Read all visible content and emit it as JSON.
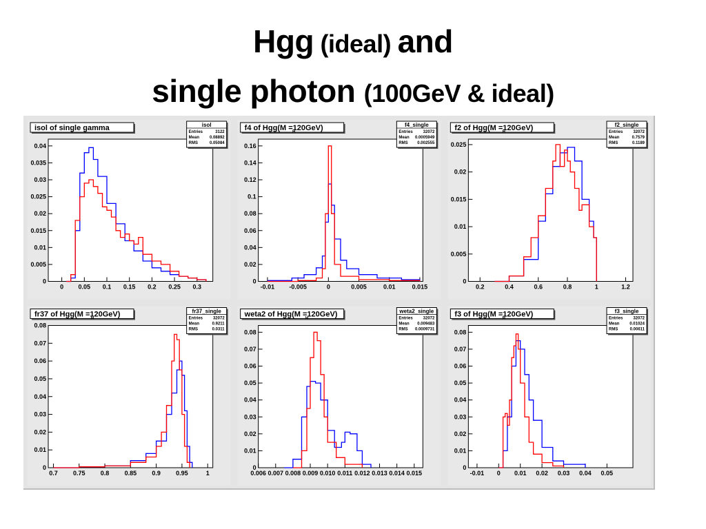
{
  "slide": {
    "title_line1_a": "Hgg",
    "title_line1_b": " (ideal) ",
    "title_line1_c": "and",
    "title_line2_a": "single photon ",
    "title_line2_b": "(100GeV & ideal)"
  },
  "colors": {
    "hgg": "#ff0000",
    "single": "#0000ff",
    "pad": "#ffffff",
    "canvas": "#e4e4e4"
  },
  "chart_data": [
    {
      "type": "line",
      "title": "isol of single gamma",
      "stats": {
        "name": "isol",
        "rows": [
          [
            "Entries",
            "3122"
          ],
          [
            "Mean",
            "0.08892"
          ],
          [
            "RMS",
            "0.05084"
          ]
        ]
      },
      "xlim": [
        -0.03,
        0.335
      ],
      "ylim": [
        0,
        0.042
      ],
      "xticks": [
        0,
        0.05,
        0.1,
        0.15,
        0.2,
        0.25,
        0.3
      ],
      "xtick_labels": [
        "0",
        "0.05",
        "0.1",
        "0.15",
        "0.2",
        "0.25",
        "0.3"
      ],
      "yticks": [
        0,
        0.005,
        0.01,
        0.015,
        0.02,
        0.025,
        0.03,
        0.035,
        0.04
      ],
      "ytick_labels": [
        "0",
        "0.005",
        "0.01",
        "0.015",
        "0.02",
        "0.025",
        "0.03",
        "0.035",
        "0.04"
      ],
      "series": [
        {
          "color": "#0000ff",
          "x": [
            0.01,
            0.02,
            0.03,
            0.04,
            0.05,
            0.06,
            0.07,
            0.08,
            0.1,
            0.12,
            0.14,
            0.16,
            0.18,
            0.2,
            0.22,
            0.24,
            0.26,
            0.28,
            0.3,
            0.32
          ],
          "y": [
            0,
            0.001,
            0.015,
            0.032,
            0.038,
            0.0395,
            0.036,
            0.031,
            0.023,
            0.017,
            0.012,
            0.009,
            0.006,
            0.004,
            0.003,
            0.002,
            0.0015,
            0.001,
            0.0005,
            0
          ]
        },
        {
          "color": "#ff0000",
          "x": [
            0.01,
            0.02,
            0.03,
            0.04,
            0.05,
            0.06,
            0.07,
            0.08,
            0.09,
            0.1,
            0.11,
            0.12,
            0.13,
            0.14,
            0.15,
            0.16,
            0.17,
            0.18,
            0.2,
            0.22,
            0.24,
            0.26,
            0.28,
            0.3,
            0.32
          ],
          "y": [
            0,
            0.002,
            0.018,
            0.025,
            0.029,
            0.03,
            0.028,
            0.026,
            0.022,
            0.021,
            0.019,
            0.015,
            0.013,
            0.014,
            0.012,
            0.011,
            0.013,
            0.008,
            0.006,
            0.005,
            0.003,
            0.0015,
            0.001,
            0.0005,
            0
          ]
        }
      ]
    },
    {
      "type": "line",
      "title": "f4 of Hgg(M =120GeV)",
      "title_sub": "H",
      "stats": {
        "name": "f4_single",
        "rows": [
          [
            "Entries",
            "32072"
          ],
          [
            "Mean",
            "0.0005949"
          ],
          [
            "RMS",
            "0.002555"
          ]
        ]
      },
      "xlim": [
        -0.0115,
        0.0155
      ],
      "ylim": [
        0,
        0.168
      ],
      "xticks": [
        -0.01,
        -0.005,
        0,
        0.005,
        0.01,
        0.015
      ],
      "xtick_labels": [
        "-0.01",
        "-0.005",
        "0",
        "0.005",
        "0.01",
        "0.015"
      ],
      "yticks": [
        0,
        0.02,
        0.04,
        0.06,
        0.08,
        0.1,
        0.12,
        0.14,
        0.16
      ],
      "ytick_labels": [
        "0",
        "0.02",
        "0.04",
        "0.06",
        "0.08",
        "0.1",
        "0.12",
        "0.14",
        "0.16"
      ],
      "series": [
        {
          "color": "#0000ff",
          "x": [
            -0.01,
            -0.006,
            -0.004,
            -0.002,
            -0.001,
            -0.0005,
            0,
            0.0005,
            0.001,
            0.002,
            0.003,
            0.005,
            0.008,
            0.012,
            0.015
          ],
          "y": [
            0.001,
            0.004,
            0.008,
            0.016,
            0.03,
            0.07,
            0.115,
            0.09,
            0.05,
            0.025,
            0.015,
            0.008,
            0.004,
            0.002,
            0
          ]
        },
        {
          "color": "#ff0000",
          "x": [
            -0.01,
            -0.005,
            -0.002,
            -0.001,
            -0.0005,
            0,
            0.0005,
            0.001,
            0.002,
            0.005,
            0.01,
            0.015
          ],
          "y": [
            0,
            0.001,
            0.004,
            0.015,
            0.08,
            0.16,
            0.08,
            0.02,
            0.006,
            0.002,
            0.001,
            0
          ]
        }
      ]
    },
    {
      "type": "line",
      "title": "f2 of Hgg(M =120GeV)",
      "title_sub": "H",
      "stats": {
        "name": "f2_single",
        "rows": [
          [
            "Entries",
            "32072"
          ],
          [
            "Mean",
            "0.7579"
          ],
          [
            "RMS",
            "0.1189"
          ]
        ]
      },
      "xlim": [
        0.12,
        1.25
      ],
      "ylim": [
        0,
        0.026
      ],
      "xticks": [
        0.2,
        0.4,
        0.6,
        0.8,
        1,
        1.2
      ],
      "xtick_labels": [
        "0.2",
        "0.4",
        "0.6",
        "0.8",
        "1",
        "1.2"
      ],
      "yticks": [
        0,
        0.005,
        0.01,
        0.015,
        0.02,
        0.025
      ],
      "ytick_labels": [
        "0",
        "0.005",
        "0.01",
        "0.015",
        "0.02",
        "0.025"
      ],
      "series": [
        {
          "color": "#0000ff",
          "x": [
            0.3,
            0.4,
            0.5,
            0.6,
            0.65,
            0.7,
            0.75,
            0.8,
            0.85,
            0.9,
            0.95,
            0.98,
            1
          ],
          "y": [
            0,
            0.001,
            0.004,
            0.011,
            0.016,
            0.021,
            0.0235,
            0.0245,
            0.022,
            0.015,
            0.011,
            0.008,
            0
          ]
        },
        {
          "color": "#ff0000",
          "x": [
            0.3,
            0.4,
            0.5,
            0.55,
            0.6,
            0.65,
            0.7,
            0.72,
            0.75,
            0.78,
            0.8,
            0.82,
            0.85,
            0.88,
            0.9,
            0.95,
            0.98,
            1
          ],
          "y": [
            0,
            0.001,
            0.0045,
            0.008,
            0.012,
            0.017,
            0.022,
            0.025,
            0.021,
            0.024,
            0.022,
            0.02,
            0.017,
            0.013,
            0.014,
            0.01,
            0.008,
            0
          ]
        }
      ]
    },
    {
      "type": "line",
      "title": "fr37 of Hgg(M =120GeV)",
      "title_sub": "H",
      "stats": {
        "name": "fr37_single",
        "rows": [
          [
            "Entries",
            "32072"
          ],
          [
            "Mean",
            "0.9211"
          ],
          [
            "RMS",
            "0.0311"
          ]
        ]
      },
      "xlim": [
        0.69,
        1.01
      ],
      "ylim": [
        0,
        0.08
      ],
      "xticks": [
        0.7,
        0.75,
        0.8,
        0.85,
        0.9,
        0.95,
        1
      ],
      "xtick_labels": [
        "0.7",
        "0.75",
        "0.8",
        "0.85",
        "0.9",
        "0.95",
        "1"
      ],
      "yticks": [
        0,
        0.01,
        0.02,
        0.03,
        0.04,
        0.05,
        0.06,
        0.07,
        0.08
      ],
      "ytick_labels": [
        "0",
        "0.01",
        "0.02",
        "0.03",
        "0.04",
        "0.05",
        "0.06",
        "0.07",
        "0.08"
      ],
      "series": [
        {
          "color": "#0000ff",
          "x": [
            0.7,
            0.75,
            0.8,
            0.85,
            0.88,
            0.9,
            0.92,
            0.93,
            0.94,
            0.945,
            0.95,
            0.955,
            0.96,
            0.965,
            0.97
          ],
          "y": [
            0,
            0.0005,
            0.001,
            0.004,
            0.008,
            0.015,
            0.03,
            0.042,
            0.055,
            0.06,
            0.052,
            0.032,
            0.012,
            0.003,
            0
          ]
        },
        {
          "color": "#ff0000",
          "x": [
            0.7,
            0.75,
            0.8,
            0.85,
            0.88,
            0.9,
            0.91,
            0.92,
            0.93,
            0.935,
            0.94,
            0.945,
            0.95,
            0.955,
            0.96,
            0.965
          ],
          "y": [
            0,
            0.0005,
            0.001,
            0.003,
            0.006,
            0.012,
            0.02,
            0.035,
            0.06,
            0.075,
            0.072,
            0.055,
            0.03,
            0.012,
            0.003,
            0
          ]
        }
      ]
    },
    {
      "type": "line",
      "title": "weta2 of Hgg(M =120GeV)",
      "title_sub": "H",
      "stats": {
        "name": "weta2_single",
        "rows": [
          [
            "Entries",
            "32072"
          ],
          [
            "Mean",
            "0.009483"
          ],
          [
            "RMS",
            "0.0009731"
          ]
        ]
      },
      "xlim": [
        0.006,
        0.0155
      ],
      "ylim": [
        0,
        0.084
      ],
      "xticks": [
        0.006,
        0.007,
        0.008,
        0.009,
        0.01,
        0.011,
        0.012,
        0.013,
        0.014,
        0.015
      ],
      "xtick_labels": [
        "0.006",
        "0.007",
        "0.008",
        "0.009",
        "0.010",
        "0.011",
        "0.012",
        "0.013",
        "0.014",
        "0.015"
      ],
      "yticks": [
        0,
        0.01,
        0.02,
        0.03,
        0.04,
        0.05,
        0.06,
        0.07,
        0.08
      ],
      "ytick_labels": [
        "0",
        "0.01",
        "0.02",
        "0.03",
        "0.04",
        "0.05",
        "0.06",
        "0.07",
        "0.08"
      ],
      "series": [
        {
          "color": "#0000ff",
          "x": [
            0.0075,
            0.008,
            0.0085,
            0.0088,
            0.009,
            0.0093,
            0.0096,
            0.01,
            0.0104,
            0.0108,
            0.011,
            0.0113,
            0.0117,
            0.012,
            0.0125
          ],
          "y": [
            0,
            0.005,
            0.03,
            0.048,
            0.051,
            0.05,
            0.04,
            0.022,
            0.012,
            0.015,
            0.021,
            0.02,
            0.01,
            0.002,
            0
          ]
        },
        {
          "color": "#ff0000",
          "x": [
            0.008,
            0.0085,
            0.0088,
            0.009,
            0.0092,
            0.0094,
            0.0096,
            0.0098,
            0.01,
            0.0105,
            0.011,
            0.012
          ],
          "y": [
            0,
            0.01,
            0.035,
            0.065,
            0.08,
            0.075,
            0.055,
            0.03,
            0.015,
            0.006,
            0.002,
            0
          ]
        }
      ]
    },
    {
      "type": "line",
      "title": "f3 of Hgg(M =120GeV)",
      "title_sub": "H",
      "stats": {
        "name": "f3_single",
        "rows": [
          [
            "Entries",
            "32072"
          ],
          [
            "Mean",
            "0.01024"
          ],
          [
            "RMS",
            "0.00611"
          ]
        ]
      },
      "xlim": [
        -0.014,
        0.062
      ],
      "ylim": [
        0,
        0.084
      ],
      "xticks": [
        -0.01,
        0,
        0.01,
        0.02,
        0.03,
        0.04,
        0.05
      ],
      "xtick_labels": [
        "-0.01",
        "0",
        "0.01",
        "0.02",
        "0.03",
        "0.04",
        "0.05"
      ],
      "yticks": [
        0,
        0.01,
        0.02,
        0.03,
        0.04,
        0.05,
        0.06,
        0.07,
        0.08
      ],
      "ytick_labels": [
        "0",
        "0.01",
        "0.02",
        "0.03",
        "0.04",
        "0.05",
        "0.06",
        "0.07",
        "0.08"
      ],
      "series": [
        {
          "color": "#0000ff",
          "x": [
            0,
            0.002,
            0.004,
            0.006,
            0.008,
            0.01,
            0.012,
            0.014,
            0.016,
            0.02,
            0.025,
            0.03,
            0.04
          ],
          "y": [
            0,
            0.01,
            0.03,
            0.06,
            0.075,
            0.07,
            0.055,
            0.04,
            0.028,
            0.012,
            0.004,
            0.002,
            0
          ]
        },
        {
          "color": "#ff0000",
          "x": [
            0,
            0.002,
            0.003,
            0.004,
            0.005,
            0.006,
            0.007,
            0.008,
            0.009,
            0.01,
            0.012,
            0.014,
            0.016,
            0.02,
            0.025,
            0.03
          ],
          "y": [
            0,
            0.03,
            0.032,
            0.025,
            0.04,
            0.065,
            0.072,
            0.079,
            0.07,
            0.05,
            0.03,
            0.015,
            0.008,
            0.003,
            0.001,
            0
          ]
        }
      ]
    }
  ]
}
